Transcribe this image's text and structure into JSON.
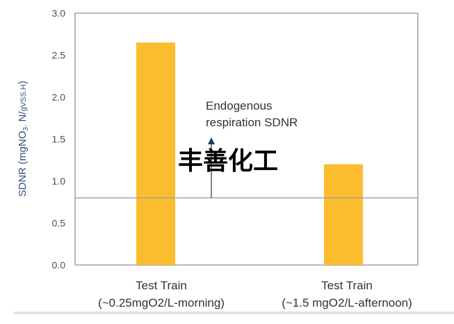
{
  "chart_data": {
    "type": "bar",
    "ylabel": "SDNR (mgNO3- N/gVSS.H)",
    "ylim": [
      0,
      3.0
    ],
    "yticks": [
      "0.0",
      "0.5",
      "1.0",
      "1.5",
      "2.0",
      "2.5",
      "3.0"
    ],
    "categories": [
      [
        "Test Train",
        "(~0.25mgO2/L-morning)"
      ],
      [
        "Test Train",
        "(~1.5 mgO2/L-afternoon)"
      ]
    ],
    "values": [
      2.65,
      1.2
    ],
    "bar_color": "#fbbd2e",
    "reference_line": {
      "value": 0.8,
      "color": "#9aa0a6"
    },
    "annotation": {
      "lines": [
        "Endogenous",
        "respiration SDNR"
      ]
    },
    "grid": false,
    "legend": "none"
  },
  "watermark": {
    "text": "丰善化工"
  }
}
